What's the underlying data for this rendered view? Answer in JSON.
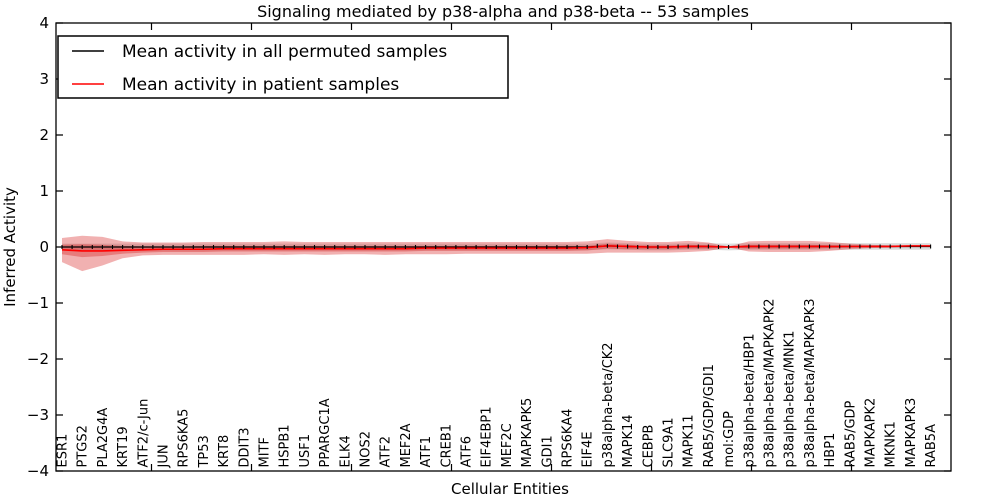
{
  "figure": {
    "title": "Signaling mediated by p38-alpha and p38-beta -- 53 samples",
    "sample_count": "53"
  },
  "chart_data": {
    "type": "line",
    "title": "Signaling mediated by p38-alpha and p38-beta -- 53 samples",
    "xlabel": "Cellular Entities",
    "ylabel": "Inferred Activity",
    "ylim": [
      -4,
      4
    ],
    "yticks": [
      -4,
      -3,
      -2,
      -1,
      0,
      1,
      2,
      3,
      4
    ],
    "x_major_ticks": [
      5,
      10,
      15,
      20,
      25,
      30,
      35,
      40
    ],
    "grid": false,
    "legend_position": "upper left",
    "legend": [
      {
        "label": "Mean activity in all permuted samples",
        "color": "#000000"
      },
      {
        "label": "Mean activity in patient samples",
        "color": "#ff0000"
      }
    ],
    "categories": [
      "ESR1",
      "PTGS2",
      "PLA2G4A",
      "KRT19",
      "ATF2/c-Jun",
      "JUN",
      "RPS6KA5",
      "TP53",
      "KRT8",
      "DDIT3",
      "MITF",
      "HSPB1",
      "USF1",
      "PPARGC1A",
      "ELK4",
      "NOS2",
      "ATF2",
      "MEF2A",
      "ATF1",
      "CREB1",
      "ATF6",
      "EIF4EBP1",
      "MEF2C",
      "MAPKAPK5",
      "GDI1",
      "RPS6KA4",
      "EIF4E",
      "p38alpha-beta/CK2",
      "MAPK14",
      "CEBPB",
      "SLC9A1",
      "MAPK11",
      "RAB5/GDP/GDI1",
      "mol:GDP",
      "p38alpha-beta/HBP1",
      "p38alpha-beta/MAPKAPK2",
      "p38alpha-beta/MNK1",
      "p38alpha-beta/MAPKAPK3",
      "HBP1",
      "RAB5/GDP",
      "MAPKAPK2",
      "MKNK1",
      "MAPKAPK3",
      "RAB5A"
    ],
    "series": [
      {
        "name": "Mean activity in all permuted samples",
        "color": "#000000",
        "values": [
          0,
          0,
          0,
          0,
          0,
          0,
          0,
          0,
          0,
          0,
          0,
          0,
          0,
          0,
          0,
          0,
          0,
          0,
          0,
          0,
          0,
          0,
          0,
          0,
          0,
          0,
          0,
          0.02,
          0.01,
          0,
          0,
          0.01,
          0.01,
          0,
          0.01,
          0.01,
          0.01,
          0.01,
          0.01,
          0.01,
          0.01,
          0.01,
          0.01,
          0.01
        ]
      },
      {
        "name": "Mean activity in patient samples",
        "color": "#ff0000",
        "values": [
          -0.05,
          -0.07,
          -0.07,
          -0.06,
          -0.05,
          -0.04,
          -0.04,
          -0.04,
          -0.03,
          -0.03,
          -0.03,
          -0.03,
          -0.03,
          -0.03,
          -0.03,
          -0.03,
          -0.03,
          -0.03,
          -0.02,
          -0.02,
          -0.02,
          -0.02,
          -0.02,
          -0.02,
          -0.02,
          -0.02,
          -0.01,
          0.02,
          0.01,
          0,
          0,
          0.01,
          0.01,
          0,
          0.01,
          0.01,
          0.01,
          0.01,
          0.01,
          0.01,
          0.01,
          0.01,
          0.02,
          0.02
        ]
      }
    ],
    "patient_band_outer": {
      "upper": [
        0.16,
        0.2,
        0.18,
        0.1,
        0.08,
        0.08,
        0.08,
        0.09,
        0.09,
        0.09,
        0.09,
        0.1,
        0.09,
        0.09,
        0.09,
        0.09,
        0.09,
        0.09,
        0.09,
        0.09,
        0.09,
        0.09,
        0.09,
        0.09,
        0.09,
        0.09,
        0.1,
        0.14,
        0.11,
        0.09,
        0.09,
        0.11,
        0.08,
        0.01,
        0.1,
        0.11,
        0.11,
        0.11,
        0.09,
        0.06,
        0.04,
        0.03,
        0.03,
        0.03
      ],
      "lower": [
        -0.27,
        -0.43,
        -0.33,
        -0.2,
        -0.15,
        -0.14,
        -0.14,
        -0.14,
        -0.14,
        -0.14,
        -0.13,
        -0.14,
        -0.13,
        -0.14,
        -0.13,
        -0.13,
        -0.14,
        -0.13,
        -0.13,
        -0.13,
        -0.12,
        -0.12,
        -0.12,
        -0.12,
        -0.12,
        -0.12,
        -0.12,
        -0.1,
        -0.1,
        -0.1,
        -0.1,
        -0.09,
        -0.07,
        -0.01,
        -0.08,
        -0.09,
        -0.09,
        -0.09,
        -0.07,
        -0.04,
        -0.02,
        -0.01,
        0.0,
        0.01
      ]
    },
    "patient_band_inner": {
      "upper": [
        0.04,
        0.05,
        0.04,
        0.02,
        0.01,
        0.01,
        0.01,
        0.02,
        0.02,
        0.02,
        0.02,
        0.02,
        0.02,
        0.02,
        0.02,
        0.02,
        0.02,
        0.02,
        0.02,
        0.02,
        0.02,
        0.02,
        0.02,
        0.02,
        0.02,
        0.02,
        0.02,
        0.06,
        0.04,
        0.03,
        0.03,
        0.04,
        0.03,
        0.01,
        0.04,
        0.04,
        0.04,
        0.04,
        0.03,
        0.02,
        0.02,
        0.02,
        0.02,
        0.02
      ],
      "lower": [
        -0.13,
        -0.18,
        -0.16,
        -0.12,
        -0.1,
        -0.09,
        -0.09,
        -0.09,
        -0.08,
        -0.08,
        -0.08,
        -0.08,
        -0.08,
        -0.08,
        -0.08,
        -0.08,
        -0.08,
        -0.08,
        -0.07,
        -0.07,
        -0.07,
        -0.07,
        -0.07,
        -0.07,
        -0.07,
        -0.07,
        -0.06,
        -0.03,
        -0.04,
        -0.04,
        -0.04,
        -0.03,
        -0.03,
        -0.01,
        -0.03,
        -0.03,
        -0.03,
        -0.03,
        -0.02,
        -0.01,
        0.0,
        0.0,
        0.01,
        0.01
      ]
    },
    "permuted_band_halfwidth": 0.06,
    "colors": {
      "permuted_line": "#000000",
      "patient_line": "#ff0000",
      "band_outer": "rgba(220,60,60,0.40)",
      "band_inner": "rgba(220,60,60,0.45)",
      "band_gray": "rgba(0,0,0,0.14)",
      "spine": "#000000"
    }
  }
}
